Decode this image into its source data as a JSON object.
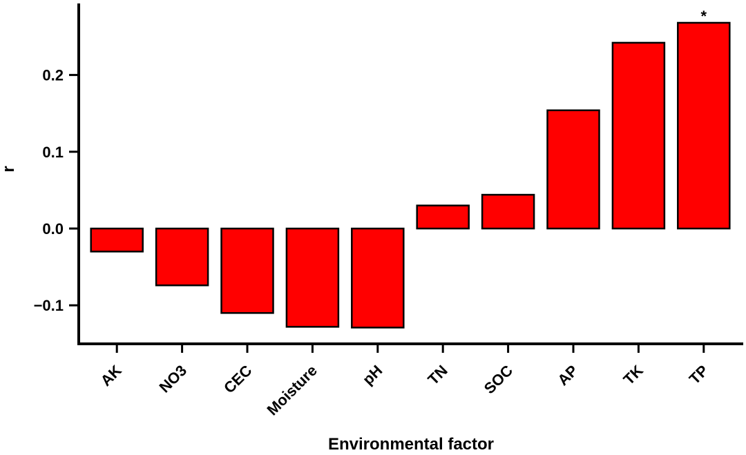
{
  "chart_data": {
    "type": "bar",
    "categories": [
      "AK",
      "NO3",
      "CEC",
      "Moisture",
      "pH",
      "TN",
      "SOC",
      "AP",
      "TK",
      "TP"
    ],
    "values": [
      -0.03,
      -0.074,
      -0.11,
      -0.128,
      -0.129,
      0.03,
      0.044,
      0.154,
      0.242,
      0.268
    ],
    "annotations": [
      {
        "category": "TP",
        "text": "*"
      }
    ],
    "xlabel": "Environmental factor",
    "ylabel": "r",
    "ylim": [
      -0.15,
      0.29
    ],
    "yticks": [
      -0.1,
      0.0,
      0.1,
      0.2
    ],
    "ytick_labels": [
      "−0.1",
      "0.0",
      "0.1",
      "0.2"
    ],
    "bar_color": "#ff0000",
    "bar_edge_color": "#000000",
    "grid": false,
    "legend": "none"
  }
}
